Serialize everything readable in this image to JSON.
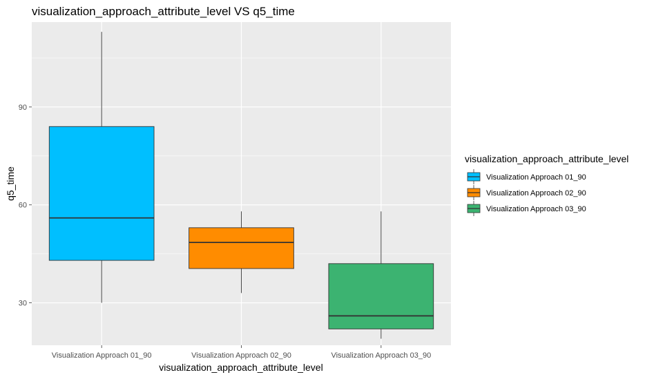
{
  "chart_data": {
    "type": "boxplot",
    "title": "visualization_approach_attribute_level VS q5_time",
    "xlabel": "visualization_approach_attribute_level",
    "ylabel": "q5_time",
    "ylim": [
      17,
      116
    ],
    "yticks": [
      30,
      60,
      90
    ],
    "grid": true,
    "legend": {
      "title": "visualization_approach_attribute_level",
      "position": "right"
    },
    "categories": [
      "Visualization Approach 01_90",
      "Visualization Approach 02_90",
      "Visualization Approach 03_90"
    ],
    "series": [
      {
        "name": "Visualization Approach 01_90",
        "color": "#00BFFF",
        "min": 30,
        "q1": 43,
        "median": 56,
        "q3": 84,
        "max": 113
      },
      {
        "name": "Visualization Approach 02_90",
        "color": "#FF8C00",
        "min": 33,
        "q1": 40.5,
        "median": 48.5,
        "q3": 53,
        "max": 58
      },
      {
        "name": "Visualization Approach 03_90",
        "color": "#3CB371",
        "min": 19,
        "q1": 22,
        "median": 26,
        "q3": 42,
        "max": 58
      }
    ]
  }
}
